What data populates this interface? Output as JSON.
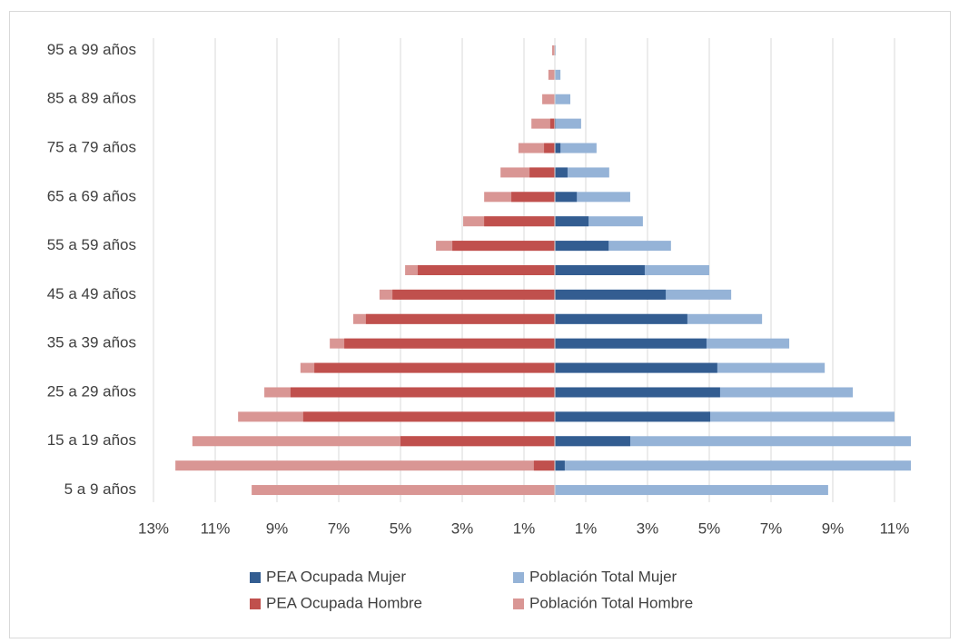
{
  "chart_data": {
    "type": "pyramid",
    "categories": [
      "5 a 9 años",
      null,
      "15 a 19 años",
      null,
      "25 a 29 años",
      null,
      "35 a 39 años",
      null,
      "45 a 49 años",
      null,
      "55 a 59 años",
      null,
      "65 a 69 años",
      null,
      "75 a 79 años",
      null,
      "85 a 89 años",
      null,
      "95 a 99 años"
    ],
    "series": [
      {
        "name": "PEA Ocupada Mujer",
        "color": "#335d91",
        "values": [
          0,
          0.32,
          2.44,
          5.03,
          5.35,
          5.26,
          4.91,
          4.29,
          3.59,
          2.91,
          1.74,
          1.09,
          0.71,
          0.41,
          0.18,
          0.03,
          0,
          0,
          0
        ]
      },
      {
        "name": "Población Total Mujer",
        "color": "#95b3d7",
        "values": [
          8.85,
          11.53,
          11.53,
          11.0,
          9.65,
          8.74,
          7.59,
          6.71,
          5.71,
          5.0,
          3.76,
          2.85,
          2.44,
          1.76,
          1.35,
          0.85,
          0.5,
          0.18,
          0.03
        ]
      },
      {
        "name": "PEA Ocupada Hombre",
        "color": "#c0504d",
        "values": [
          0,
          -0.68,
          -5.0,
          -8.15,
          -8.56,
          -7.79,
          -6.82,
          -6.12,
          -5.26,
          -4.44,
          -3.32,
          -2.29,
          -1.41,
          -0.82,
          -0.35,
          -0.15,
          0,
          0,
          0
        ]
      },
      {
        "name": "Población Total Hombre",
        "color": "#d99694",
        "values": [
          -9.82,
          -12.29,
          -11.74,
          -10.26,
          -9.41,
          -8.24,
          -7.29,
          -6.53,
          -5.68,
          -4.85,
          -3.85,
          -2.97,
          -2.29,
          -1.76,
          -1.18,
          -0.76,
          -0.41,
          -0.21,
          -0.09
        ]
      }
    ],
    "xlim": [
      -13,
      12
    ],
    "xticks": [
      {
        "value": -13,
        "label": "13%"
      },
      {
        "value": -11,
        "label": "11%"
      },
      {
        "value": -9,
        "label": "9%"
      },
      {
        "value": -7,
        "label": "7%"
      },
      {
        "value": -5,
        "label": "5%"
      },
      {
        "value": -3,
        "label": "3%"
      },
      {
        "value": -1,
        "label": "1%"
      },
      {
        "value": 1,
        "label": "1%"
      },
      {
        "value": 3,
        "label": "3%"
      },
      {
        "value": 5,
        "label": "5%"
      },
      {
        "value": 7,
        "label": "7%"
      },
      {
        "value": 9,
        "label": "9%"
      },
      {
        "value": 11,
        "label": "11%"
      }
    ],
    "grid": true,
    "legend": "bottom"
  }
}
